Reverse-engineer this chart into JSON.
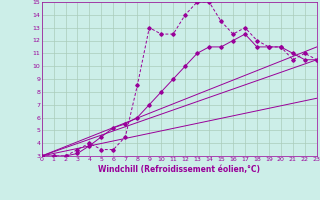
{
  "xlabel": "Windchill (Refroidissement éolien,°C)",
  "xlim": [
    0,
    23
  ],
  "ylim": [
    3,
    15
  ],
  "xticks": [
    0,
    1,
    2,
    3,
    4,
    5,
    6,
    7,
    8,
    9,
    10,
    11,
    12,
    13,
    14,
    15,
    16,
    17,
    18,
    19,
    20,
    21,
    22,
    23
  ],
  "yticks": [
    3,
    4,
    5,
    6,
    7,
    8,
    9,
    10,
    11,
    12,
    13,
    14,
    15
  ],
  "bg_color": "#cceee8",
  "line_color": "#990099",
  "grid_color": "#aaccbb",
  "line1_x": [
    0,
    1,
    2,
    3,
    4,
    5,
    6,
    7,
    8,
    9,
    10,
    11,
    12,
    13,
    14,
    15,
    16,
    17,
    18,
    19,
    20,
    21,
    22,
    23
  ],
  "line1_y": [
    3,
    3,
    3,
    3.5,
    4,
    3.5,
    3.5,
    4.5,
    8.5,
    13,
    12.5,
    12.5,
    14,
    15,
    15,
    13.5,
    12.5,
    13,
    12,
    11.5,
    11.5,
    10.5,
    11,
    10.5
  ],
  "line2_x": [
    0,
    1,
    2,
    3,
    4,
    5,
    6,
    7,
    8,
    9,
    10,
    11,
    12,
    13,
    14,
    15,
    16,
    17,
    18,
    19,
    20,
    21,
    22,
    23
  ],
  "line2_y": [
    3,
    3,
    3,
    3.2,
    3.8,
    4.5,
    5.2,
    5.5,
    6.0,
    7.0,
    8.0,
    9.0,
    10.0,
    11.0,
    11.5,
    11.5,
    12.0,
    12.5,
    11.5,
    11.5,
    11.5,
    11.0,
    10.5,
    10.5
  ],
  "line3_x": [
    0,
    23
  ],
  "line3_y": [
    3,
    11.5
  ],
  "line4_x": [
    0,
    23
  ],
  "line4_y": [
    3,
    10.5
  ],
  "line5_x": [
    0,
    23
  ],
  "line5_y": [
    3,
    7.5
  ]
}
